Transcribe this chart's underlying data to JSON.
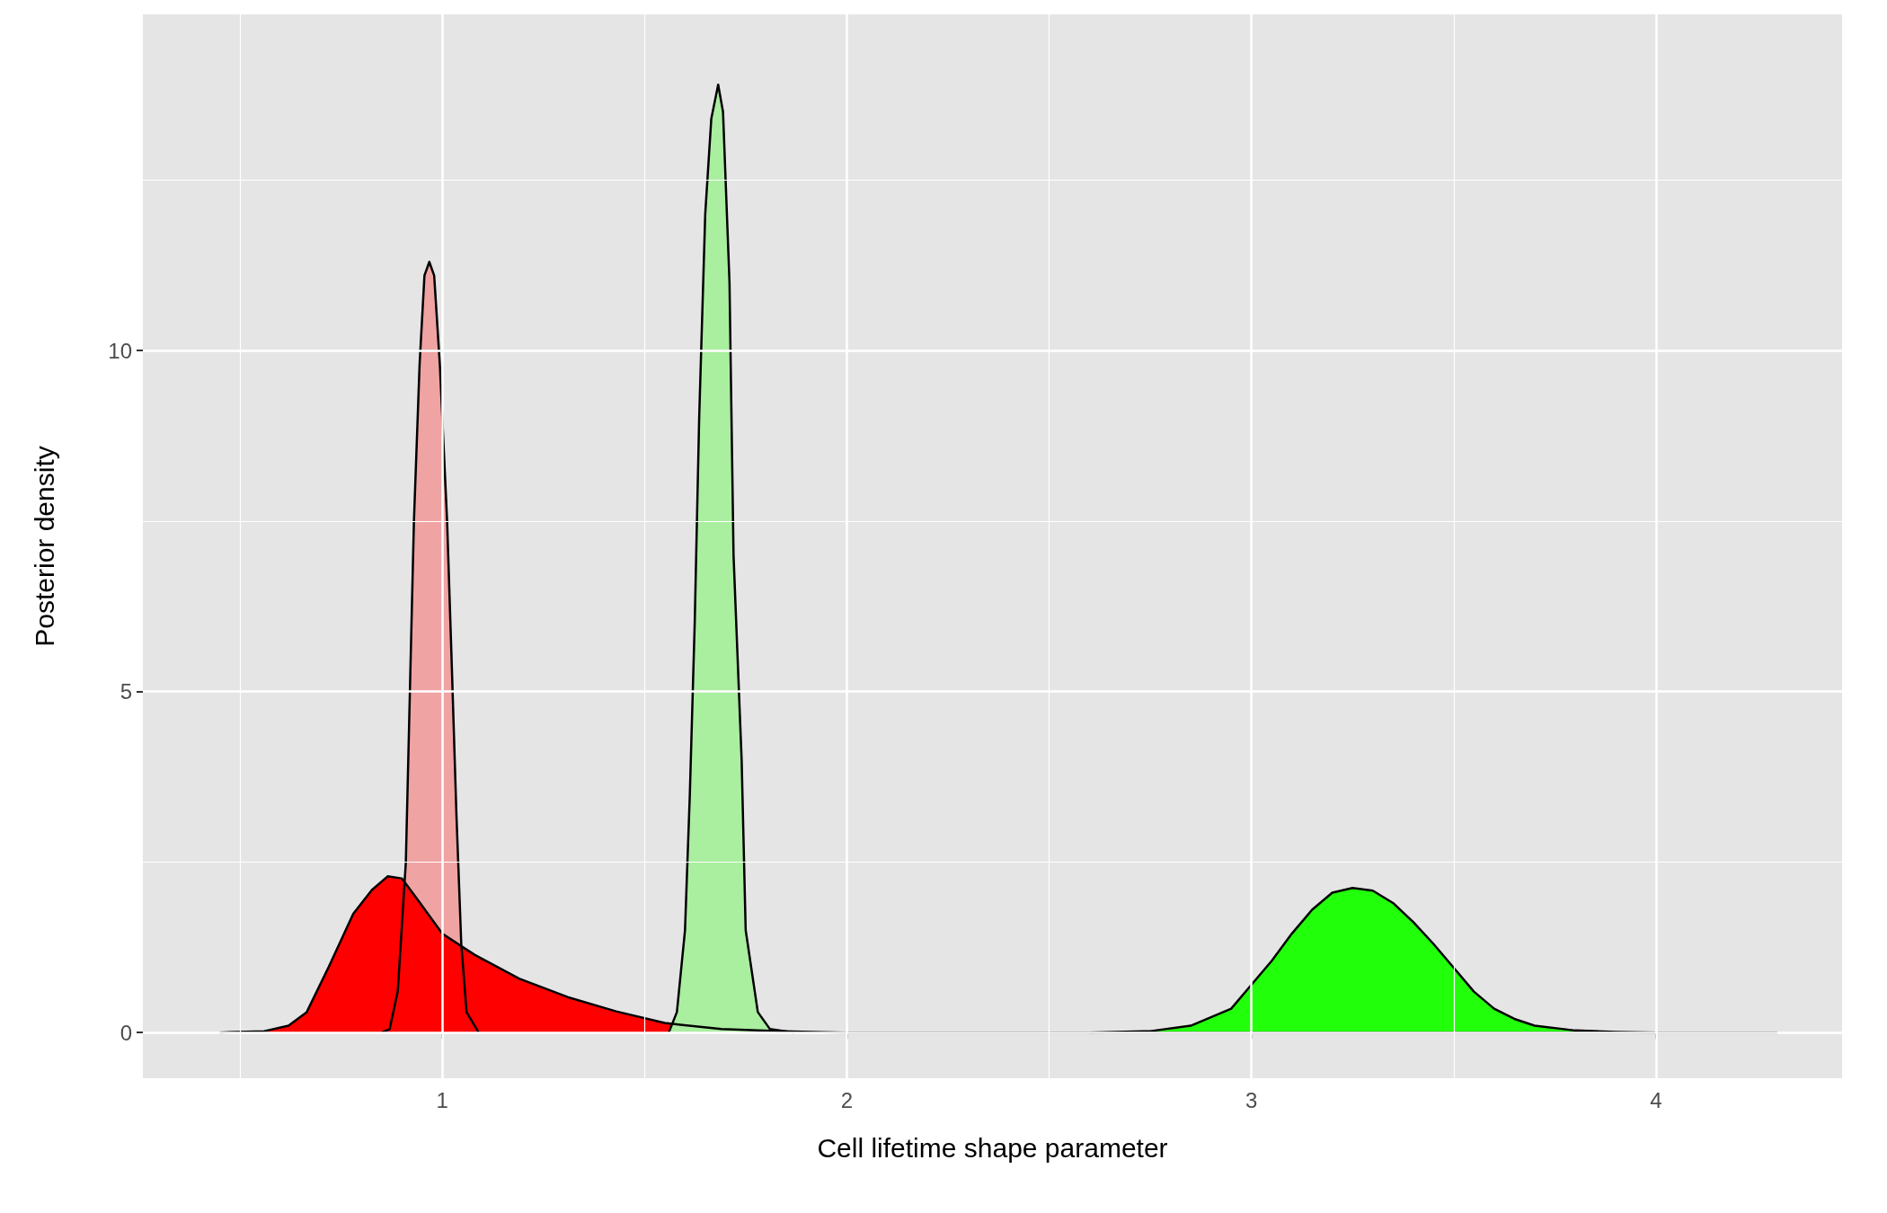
{
  "chart_data": {
    "type": "area",
    "xlabel": "Cell lifetime shape parameter",
    "ylabel": "Posterior density",
    "xlim": [
      0.26,
      4.46
    ],
    "ylim": [
      -0.67,
      14.93
    ],
    "xticks": [
      1,
      2,
      3,
      4
    ],
    "yticks": [
      0,
      5,
      10
    ],
    "grid": true,
    "marker": "none",
    "line_style": "solid",
    "series": [
      {
        "color": "#f0a3a3",
        "x": [
          0.85,
          0.87,
          0.89,
          0.91,
          0.92,
          0.93,
          0.944,
          0.956,
          0.968,
          0.98,
          0.994,
          1.012,
          1.024,
          1.035,
          1.047,
          1.06,
          1.09
        ],
        "values": [
          0,
          0.05,
          0.6,
          2.5,
          5,
          7.5,
          9.8,
          11.1,
          11.3,
          11.1,
          9.8,
          7.5,
          5.3,
          3.2,
          1.3,
          0.3,
          0
        ]
      },
      {
        "color": "#ff0000",
        "x": [
          0.45,
          0.56,
          0.62,
          0.665,
          0.72,
          0.78,
          0.826,
          0.865,
          0.9,
          0.944,
          1.0,
          1.08,
          1.19,
          1.31,
          1.43,
          1.55,
          1.69,
          1.84,
          1.99,
          4.3
        ],
        "values": [
          0,
          0.02,
          0.1,
          0.3,
          0.97,
          1.74,
          2.09,
          2.29,
          2.26,
          1.91,
          1.45,
          1.14,
          0.79,
          0.52,
          0.31,
          0.14,
          0.05,
          0.02,
          0,
          0
        ]
      },
      {
        "color": "#aaeea0",
        "x": [
          1.56,
          1.58,
          1.6,
          1.612,
          1.624,
          1.635,
          1.65,
          1.665,
          1.682,
          1.694,
          1.71,
          1.72,
          1.74,
          1.75,
          1.78,
          1.81,
          1.87
        ],
        "values": [
          0,
          0.3,
          1.5,
          3.5,
          6,
          9,
          12,
          13.4,
          13.9,
          13.5,
          11,
          7,
          4,
          1.5,
          0.3,
          0.05,
          0
        ]
      },
      {
        "color": "#22ff0a",
        "x": [
          2.6,
          2.75,
          2.85,
          2.95,
          3.0,
          3.05,
          3.1,
          3.15,
          3.2,
          3.25,
          3.3,
          3.35,
          3.4,
          3.45,
          3.5,
          3.55,
          3.6,
          3.65,
          3.7,
          3.8,
          3.9,
          4.0
        ],
        "values": [
          0,
          0.02,
          0.1,
          0.35,
          0.7,
          1.05,
          1.45,
          1.8,
          2.05,
          2.12,
          2.08,
          1.9,
          1.62,
          1.3,
          0.95,
          0.6,
          0.35,
          0.2,
          0.1,
          0.03,
          0.01,
          0
        ]
      }
    ]
  }
}
